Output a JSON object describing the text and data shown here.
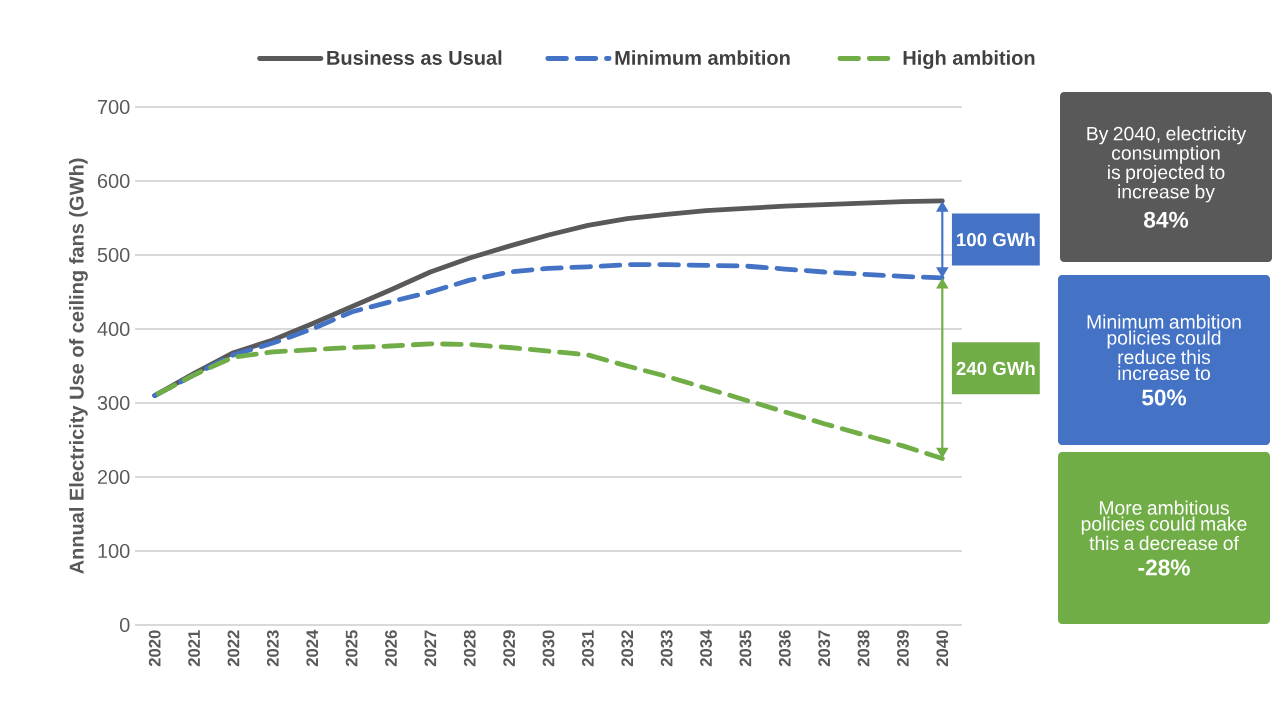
{
  "chart_data": {
    "type": "line",
    "ylabel": "Annual Electricity Use of ceiling fans (GWh)",
    "x": [
      2020,
      2021,
      2022,
      2023,
      2024,
      2025,
      2026,
      2027,
      2028,
      2029,
      2030,
      2031,
      2032,
      2033,
      2034,
      2035,
      2036,
      2037,
      2038,
      2039,
      2040
    ],
    "series": [
      {
        "name": "Business as Usual",
        "color": "#595959",
        "line_style": "solid",
        "values": [
          310,
          340,
          368,
          385,
          407,
          430,
          453,
          477,
          496,
          512,
          527,
          540,
          549,
          555,
          560,
          563,
          566,
          568,
          570,
          572,
          573
        ]
      },
      {
        "name": "Minimum ambition",
        "color": "#4472c4",
        "line_style": "dashed",
        "values": [
          310,
          338,
          365,
          381,
          400,
          423,
          437,
          450,
          466,
          477,
          482,
          484,
          487,
          487,
          486,
          485,
          481,
          477,
          474,
          471,
          469
        ]
      },
      {
        "name": "High ambition",
        "color": "#70ad47",
        "line_style": "dashed",
        "values": [
          310,
          338,
          362,
          369,
          372,
          375,
          377,
          380,
          379,
          375,
          370,
          365,
          350,
          336,
          320,
          304,
          288,
          272,
          257,
          242,
          225
        ]
      }
    ],
    "xlim": [
      2019.5,
      2040.5
    ],
    "xticks": [
      2020,
      2021,
      2022,
      2023,
      2024,
      2025,
      2026,
      2027,
      2028,
      2029,
      2030,
      2031,
      2032,
      2033,
      2034,
      2035,
      2036,
      2037,
      2038,
      2039,
      2040
    ],
    "ylim": [
      0,
      700
    ],
    "yticks": [
      0,
      100,
      200,
      300,
      400,
      500,
      600,
      700
    ],
    "grid": "y",
    "legend": "top",
    "annotations": [
      "100 GWh",
      "240 GWh",
      "By 2040, electricity consumption is projected to increase by",
      "84%",
      "Minimum ambition policies could reduce this increase to",
      "50%",
      "More ambitious policies could make this a decrease of",
      "-28%"
    ]
  }
}
